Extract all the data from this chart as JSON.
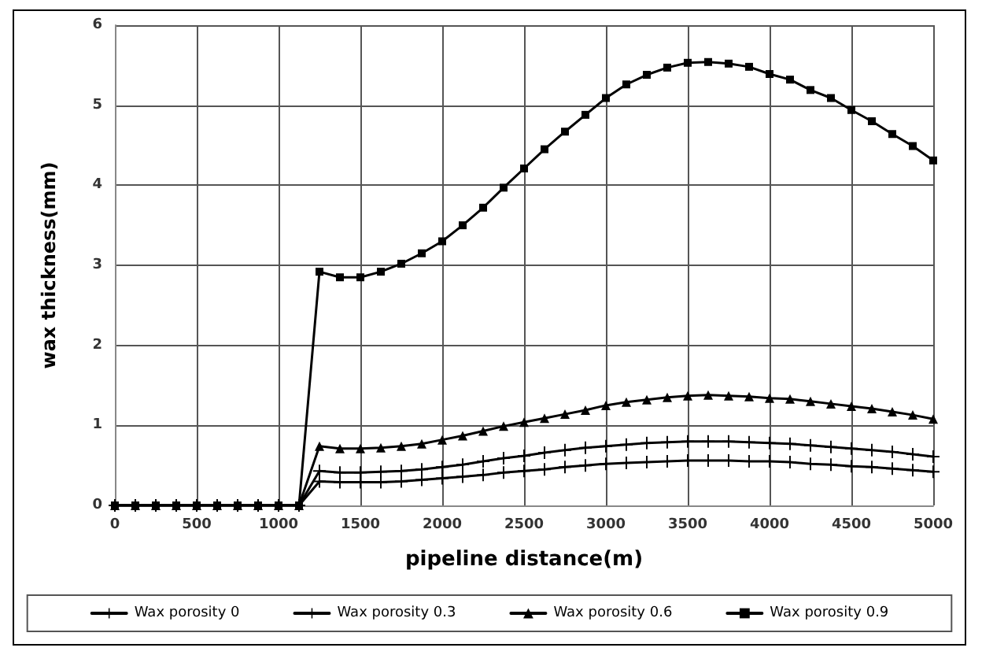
{
  "chart_data": {
    "type": "line",
    "xlabel": "pipeline distance(m)",
    "ylabel": "wax thickness(mm)",
    "x": [
      0,
      125,
      250,
      375,
      500,
      625,
      750,
      875,
      1000,
      1125,
      1250,
      1375,
      1500,
      1625,
      1750,
      1875,
      2000,
      2125,
      2250,
      2375,
      2500,
      2625,
      2750,
      2875,
      3000,
      3125,
      3250,
      3375,
      3500,
      3625,
      3750,
      3875,
      4000,
      4125,
      4250,
      4375,
      4500,
      4625,
      4750,
      4875,
      5000
    ],
    "xlim": [
      0,
      5000
    ],
    "xticks": [
      0,
      500,
      1000,
      1500,
      2000,
      2500,
      3000,
      3500,
      4000,
      4500,
      5000
    ],
    "ylim": [
      0,
      6
    ],
    "yticks": [
      0,
      1,
      2,
      3,
      4,
      5,
      6
    ],
    "grid": true,
    "legend": "bottom",
    "line_style": "solid",
    "series": [
      {
        "name": "Wax porosity 0",
        "color": "#000000",
        "marker": "cross",
        "values": [
          0,
          0,
          0,
          0,
          0,
          0,
          0,
          0,
          0,
          0,
          0.3,
          0.29,
          0.29,
          0.29,
          0.3,
          0.32,
          0.34,
          0.36,
          0.38,
          0.41,
          0.43,
          0.45,
          0.48,
          0.5,
          0.52,
          0.53,
          0.54,
          0.55,
          0.56,
          0.56,
          0.56,
          0.55,
          0.55,
          0.54,
          0.52,
          0.51,
          0.49,
          0.48,
          0.46,
          0.44,
          0.42
        ]
      },
      {
        "name": "Wax porosity 0.3",
        "color": "#000000",
        "marker": "cross",
        "values": [
          0,
          0,
          0,
          0,
          0,
          0,
          0,
          0,
          0,
          0,
          0.43,
          0.41,
          0.41,
          0.42,
          0.43,
          0.45,
          0.48,
          0.51,
          0.55,
          0.59,
          0.62,
          0.66,
          0.69,
          0.72,
          0.74,
          0.76,
          0.78,
          0.79,
          0.8,
          0.8,
          0.8,
          0.79,
          0.78,
          0.77,
          0.75,
          0.73,
          0.71,
          0.69,
          0.67,
          0.64,
          0.61
        ]
      },
      {
        "name": "Wax porosity 0.6",
        "color": "#000000",
        "marker": "triangle",
        "values": [
          0,
          0,
          0,
          0,
          0,
          0,
          0,
          0,
          0,
          0,
          0.74,
          0.71,
          0.71,
          0.72,
          0.74,
          0.77,
          0.82,
          0.87,
          0.93,
          0.99,
          1.04,
          1.09,
          1.14,
          1.19,
          1.25,
          1.29,
          1.32,
          1.35,
          1.37,
          1.38,
          1.37,
          1.36,
          1.34,
          1.33,
          1.3,
          1.27,
          1.24,
          1.21,
          1.17,
          1.13,
          1.08
        ]
      },
      {
        "name": "Wax porosity 0.9",
        "color": "#000000",
        "marker": "square",
        "values": [
          0,
          0,
          0,
          0,
          0,
          0,
          0,
          0,
          0,
          0,
          2.92,
          2.85,
          2.85,
          2.92,
          3.02,
          3.15,
          3.3,
          3.5,
          3.72,
          3.97,
          4.21,
          4.45,
          4.67,
          4.88,
          5.09,
          5.26,
          5.38,
          5.47,
          5.53,
          5.54,
          5.52,
          5.48,
          5.39,
          5.32,
          5.19,
          5.09,
          4.94,
          4.8,
          4.64,
          4.49,
          4.31
        ]
      }
    ]
  }
}
